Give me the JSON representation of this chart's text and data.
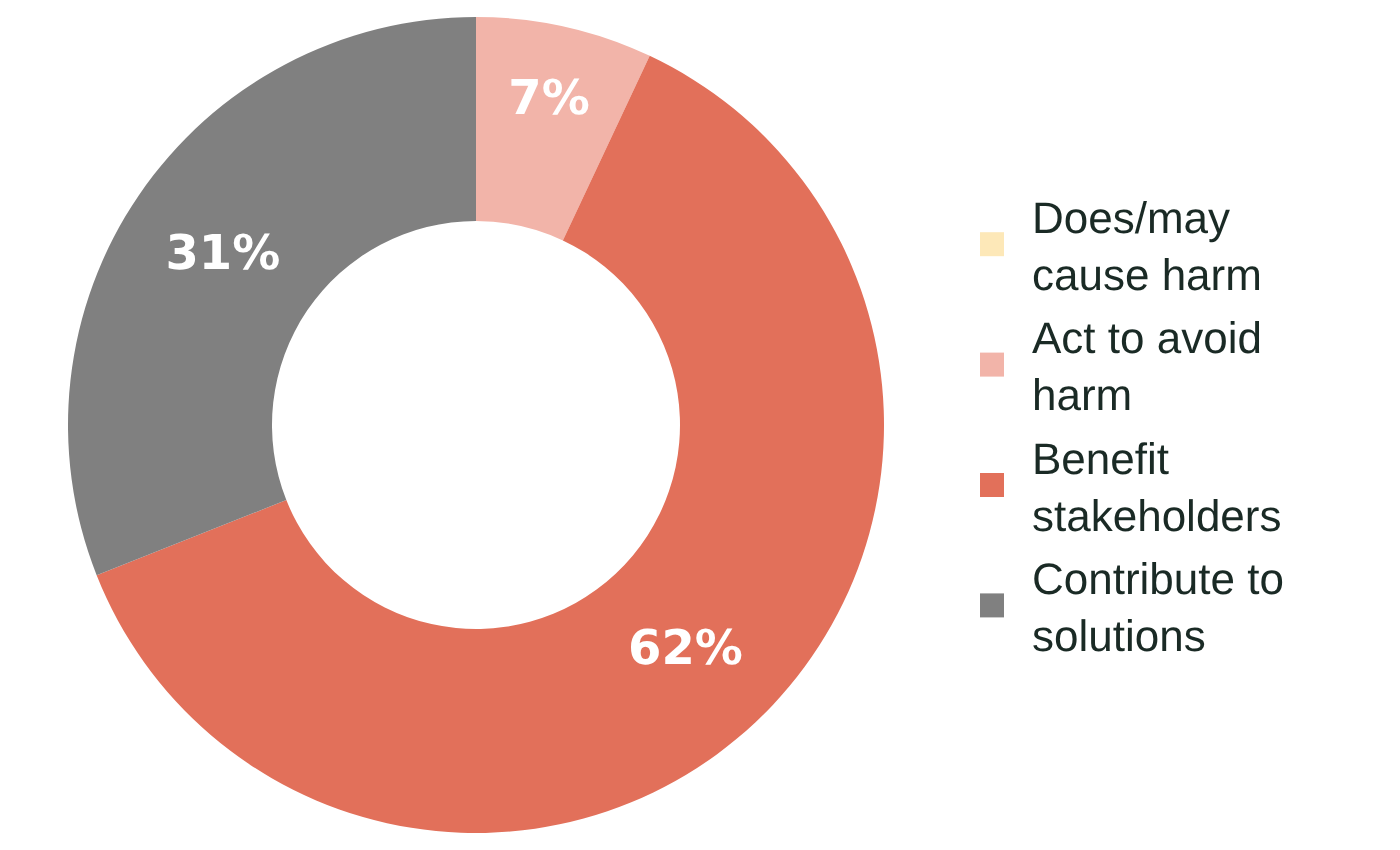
{
  "chart_data": {
    "type": "donut",
    "categories": [
      "Does/may cause harm",
      "Act to avoid harm",
      "Benefit stakeholders",
      "Contribute to solutions"
    ],
    "values": [
      0,
      7,
      62,
      31
    ],
    "colors": [
      "#fde8b8",
      "#f2b4a9",
      "#e2705a",
      "#808080"
    ],
    "value_labels": [
      null,
      "7%",
      "62%",
      "31%"
    ],
    "legend": "right"
  }
}
